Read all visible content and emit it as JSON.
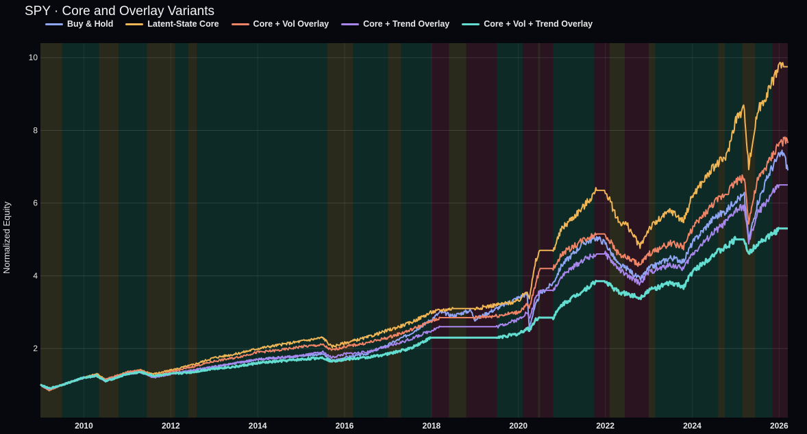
{
  "chart_data": {
    "type": "line",
    "title": "SPY · Core and Overlay Variants",
    "xlabel": "",
    "ylabel": "Normalized Equity",
    "xlim": [
      2009.0,
      2026.2
    ],
    "ylim": [
      0.1,
      10.4
    ],
    "x_ticks": [
      "2010",
      "2012",
      "2014",
      "2016",
      "2018",
      "2020",
      "2022",
      "2024",
      "2026"
    ],
    "y_ticks": [
      "2",
      "4",
      "6",
      "8",
      "10"
    ],
    "grid": true,
    "legend_position": "top-left",
    "regime_colors": {
      "bull": "#0d2a26",
      "neutral": "#2a2a1c",
      "bear": "#2a1420"
    },
    "regimes": [
      {
        "start": 2009.0,
        "end": 2009.5,
        "state": "neutral"
      },
      {
        "start": 2009.5,
        "end": 2010.35,
        "state": "bull"
      },
      {
        "start": 2010.35,
        "end": 2010.8,
        "state": "neutral"
      },
      {
        "start": 2010.8,
        "end": 2011.45,
        "state": "bull"
      },
      {
        "start": 2011.45,
        "end": 2012.1,
        "state": "neutral"
      },
      {
        "start": 2012.1,
        "end": 2012.4,
        "state": "bull"
      },
      {
        "start": 2012.4,
        "end": 2012.6,
        "state": "neutral"
      },
      {
        "start": 2012.6,
        "end": 2015.6,
        "state": "bull"
      },
      {
        "start": 2015.6,
        "end": 2016.2,
        "state": "neutral"
      },
      {
        "start": 2016.2,
        "end": 2017.0,
        "state": "bull"
      },
      {
        "start": 2017.0,
        "end": 2017.3,
        "state": "neutral"
      },
      {
        "start": 2017.3,
        "end": 2018.0,
        "state": "bull"
      },
      {
        "start": 2018.0,
        "end": 2018.4,
        "state": "bear"
      },
      {
        "start": 2018.4,
        "end": 2018.8,
        "state": "neutral"
      },
      {
        "start": 2018.8,
        "end": 2019.5,
        "state": "bear"
      },
      {
        "start": 2019.5,
        "end": 2020.1,
        "state": "bull"
      },
      {
        "start": 2020.1,
        "end": 2020.45,
        "state": "bear"
      },
      {
        "start": 2020.45,
        "end": 2020.5,
        "state": "neutral"
      },
      {
        "start": 2020.5,
        "end": 2020.8,
        "state": "bear"
      },
      {
        "start": 2020.8,
        "end": 2021.75,
        "state": "bull"
      },
      {
        "start": 2021.75,
        "end": 2022.1,
        "state": "bear"
      },
      {
        "start": 2022.1,
        "end": 2022.45,
        "state": "neutral"
      },
      {
        "start": 2022.45,
        "end": 2023.0,
        "state": "bear"
      },
      {
        "start": 2023.0,
        "end": 2023.15,
        "state": "neutral"
      },
      {
        "start": 2023.15,
        "end": 2024.6,
        "state": "bull"
      },
      {
        "start": 2024.6,
        "end": 2024.75,
        "state": "neutral"
      },
      {
        "start": 2024.75,
        "end": 2025.15,
        "state": "bull"
      },
      {
        "start": 2025.15,
        "end": 2025.45,
        "state": "neutral"
      },
      {
        "start": 2025.45,
        "end": 2025.85,
        "state": "bull"
      },
      {
        "start": 2025.85,
        "end": 2026.2,
        "state": "bear"
      }
    ],
    "x": [
      2009.0,
      2009.2,
      2009.5,
      2010.0,
      2010.3,
      2010.5,
      2011.0,
      2011.3,
      2011.6,
      2012.0,
      2012.5,
      2013.0,
      2013.5,
      2014.0,
      2014.5,
      2015.0,
      2015.5,
      2015.7,
      2016.0,
      2016.5,
      2017.0,
      2017.5,
      2018.0,
      2018.2,
      2018.5,
      2018.9,
      2019.0,
      2019.5,
      2020.0,
      2020.2,
      2020.25,
      2020.4,
      2020.5,
      2020.8,
      2021.0,
      2021.5,
      2021.8,
      2022.0,
      2022.3,
      2022.5,
      2022.8,
      2023.0,
      2023.5,
      2023.8,
      2024.0,
      2024.5,
      2024.8,
      2025.0,
      2025.2,
      2025.3,
      2025.5,
      2025.8,
      2026.0,
      2026.1,
      2026.2
    ],
    "series": [
      {
        "name": "Buy & Hold",
        "color": "#8fa6f5",
        "values": [
          1.0,
          0.9,
          1.0,
          1.2,
          1.25,
          1.1,
          1.3,
          1.35,
          1.2,
          1.3,
          1.4,
          1.5,
          1.6,
          1.7,
          1.75,
          1.8,
          1.85,
          1.65,
          1.75,
          1.85,
          2.1,
          2.4,
          2.8,
          3.0,
          2.9,
          3.05,
          2.8,
          3.1,
          3.4,
          3.5,
          2.6,
          3.2,
          3.5,
          3.8,
          4.3,
          4.9,
          5.05,
          4.9,
          4.3,
          4.2,
          3.9,
          4.2,
          4.5,
          4.4,
          4.9,
          5.6,
          5.8,
          6.1,
          6.2,
          5.0,
          6.0,
          6.9,
          7.3,
          7.4,
          6.9
        ]
      },
      {
        "name": "Latent-State Core",
        "color": "#f0b554",
        "values": [
          1.0,
          0.85,
          1.0,
          1.2,
          1.3,
          1.15,
          1.35,
          1.4,
          1.3,
          1.4,
          1.55,
          1.75,
          1.85,
          2.0,
          2.1,
          2.2,
          2.3,
          2.05,
          2.15,
          2.3,
          2.5,
          2.7,
          3.0,
          3.05,
          3.1,
          3.1,
          3.1,
          3.2,
          3.3,
          3.6,
          3.4,
          4.4,
          4.7,
          4.7,
          5.3,
          5.9,
          6.35,
          6.35,
          5.5,
          5.4,
          4.8,
          5.3,
          5.8,
          5.5,
          6.2,
          7.0,
          7.3,
          8.3,
          8.6,
          7.0,
          8.5,
          9.2,
          9.8,
          9.75,
          9.75
        ]
      },
      {
        "name": "Core + Vol Overlay",
        "color": "#ef8467",
        "values": [
          1.0,
          0.85,
          1.0,
          1.2,
          1.25,
          1.15,
          1.35,
          1.4,
          1.25,
          1.35,
          1.5,
          1.65,
          1.75,
          1.9,
          1.95,
          2.05,
          2.1,
          1.95,
          2.05,
          2.15,
          2.3,
          2.5,
          2.75,
          2.85,
          2.85,
          2.85,
          2.85,
          2.9,
          3.0,
          3.2,
          3.1,
          3.8,
          4.2,
          4.2,
          4.6,
          5.0,
          5.15,
          5.15,
          4.6,
          4.5,
          4.3,
          4.6,
          4.9,
          4.8,
          5.3,
          6.0,
          6.3,
          6.6,
          6.7,
          5.5,
          6.6,
          7.2,
          7.65,
          7.7,
          7.65
        ]
      },
      {
        "name": "Core + Trend Overlay",
        "color": "#a886ee",
        "values": [
          1.0,
          0.88,
          1.0,
          1.2,
          1.25,
          1.1,
          1.3,
          1.35,
          1.2,
          1.3,
          1.4,
          1.5,
          1.6,
          1.7,
          1.75,
          1.8,
          1.9,
          1.75,
          1.85,
          1.9,
          2.05,
          2.25,
          2.5,
          2.6,
          2.6,
          2.6,
          2.6,
          2.6,
          2.8,
          3.0,
          2.8,
          3.4,
          3.6,
          3.6,
          4.0,
          4.45,
          4.6,
          4.6,
          4.2,
          4.0,
          3.8,
          4.1,
          4.3,
          4.2,
          4.6,
          5.2,
          5.5,
          5.8,
          5.9,
          4.9,
          5.7,
          6.2,
          6.5,
          6.5,
          6.5
        ]
      },
      {
        "name": "Core + Vol + Trend Overlay",
        "color": "#62ddd0",
        "values": [
          1.0,
          0.9,
          1.0,
          1.2,
          1.25,
          1.1,
          1.3,
          1.35,
          1.25,
          1.3,
          1.35,
          1.45,
          1.5,
          1.6,
          1.65,
          1.7,
          1.75,
          1.65,
          1.7,
          1.75,
          1.85,
          2.0,
          2.3,
          2.3,
          2.3,
          2.3,
          2.3,
          2.3,
          2.4,
          2.55,
          2.5,
          2.8,
          2.85,
          2.85,
          3.2,
          3.6,
          3.85,
          3.85,
          3.55,
          3.5,
          3.4,
          3.6,
          3.8,
          3.7,
          4.1,
          4.6,
          4.8,
          5.0,
          5.0,
          4.6,
          4.9,
          5.1,
          5.3,
          5.3,
          5.3
        ]
      }
    ]
  }
}
